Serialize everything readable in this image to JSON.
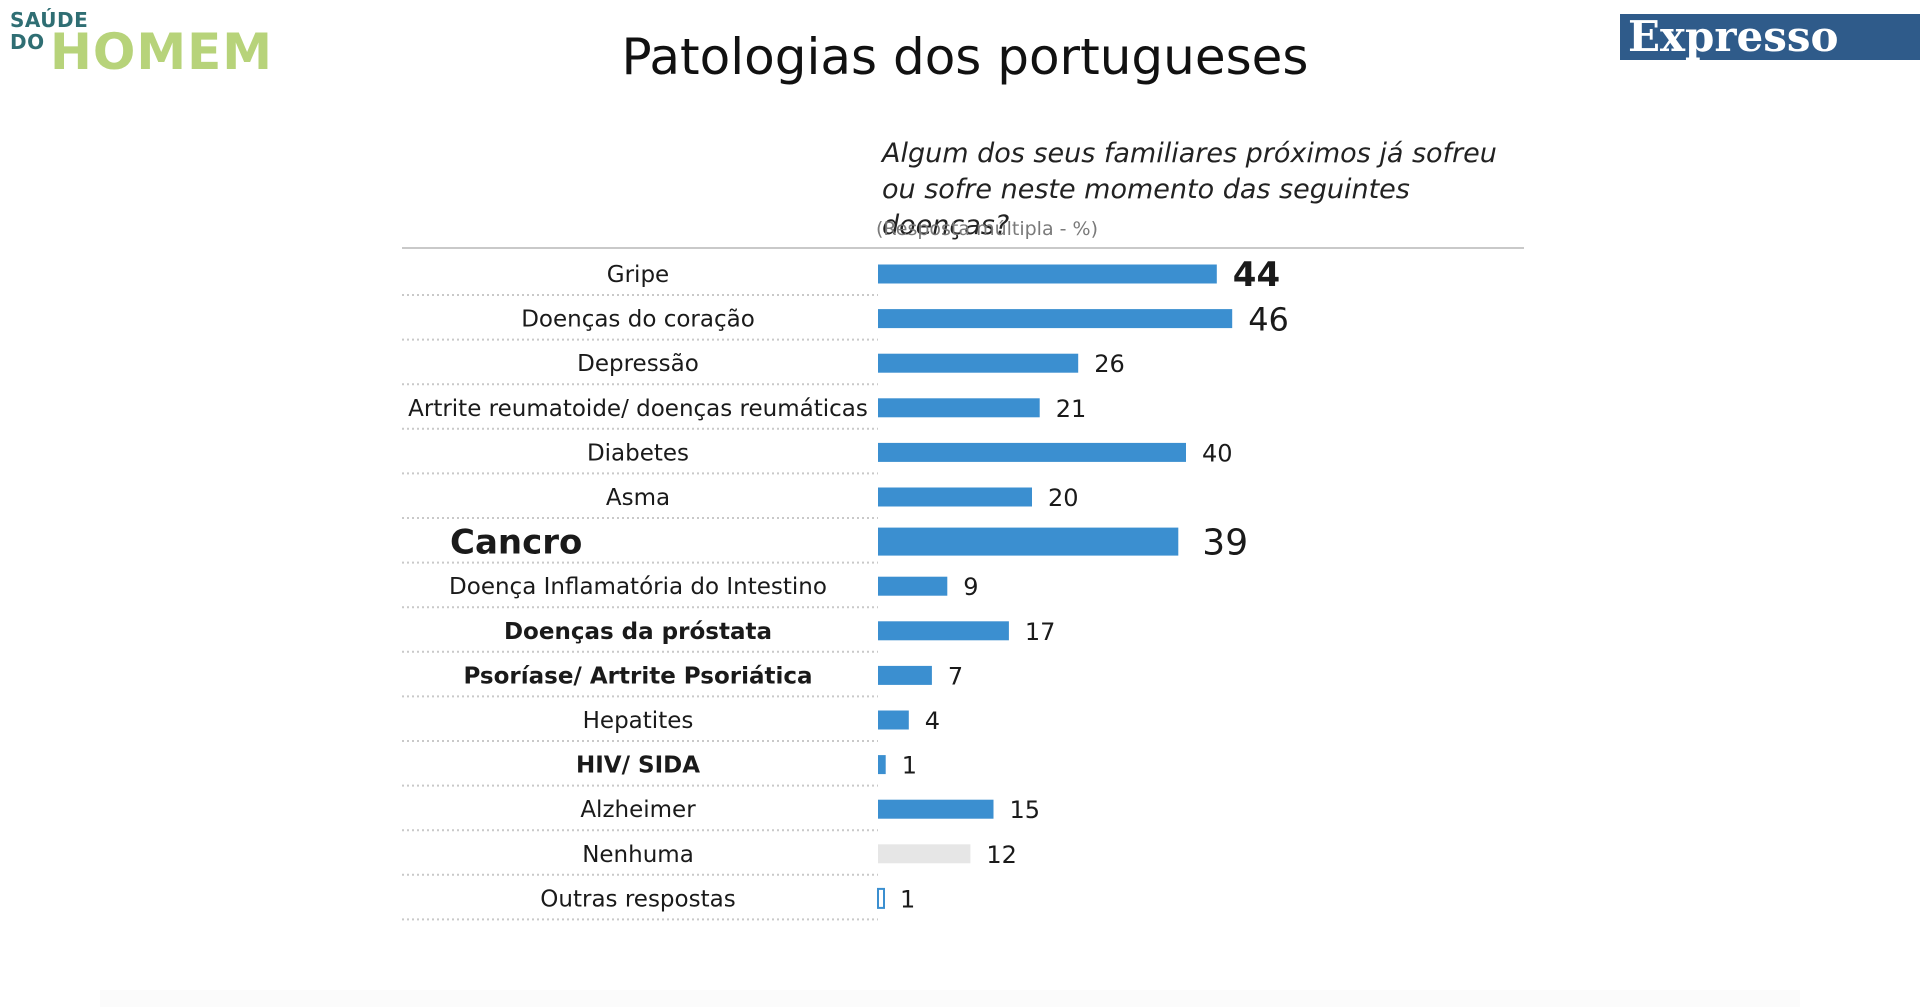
{
  "logo": {
    "line1": "SAÚDE",
    "line2": "DO",
    "big_text": "HOMEM",
    "colors": {
      "small": "#2f6e73",
      "big": "#b7d37a"
    }
  },
  "header": {
    "title": "Patologias dos portugueses",
    "brand": "Expresso"
  },
  "chart_data": {
    "type": "bar",
    "orientation": "horizontal",
    "title": "",
    "subtitle": "Algum dos seus familiares próximos já sofreu ou sofre neste momento das seguintes doenças?",
    "note": "(Resposta múltipla - %)",
    "categories": [
      "Gripe",
      "Doenças do coração",
      "Depressão",
      "Artrite reumatoide/ doenças reumáticas",
      "Diabetes",
      "Asma",
      "Cancro",
      "Doença Inflamatória do Intestino",
      "Doenças da próstata",
      "Psoríase/ Artrite Psoriática",
      "Hepatites",
      "HIV/ SIDA",
      "Alzheimer",
      "Nenhuma",
      "Outras respostas"
    ],
    "values": [
      44,
      46,
      26,
      21,
      40,
      20,
      39,
      9,
      17,
      7,
      4,
      1,
      15,
      12,
      1
    ],
    "bold_categories": [
      "Cancro",
      "Doenças da próstata",
      "Psoríase/ Artrite Psoriática",
      "HIV/ SIDA"
    ],
    "highlight_values": {
      "Gripe": "#2f5b8a",
      "Doenças do coração": "#3c6e9c"
    },
    "colors": {
      "bar": "#3b8fd0",
      "bar_none": "#e6e6e6",
      "bar_other_outline": "#3b8fd0",
      "divider": "#c9c9c9"
    },
    "grid": false,
    "legend": "none"
  }
}
